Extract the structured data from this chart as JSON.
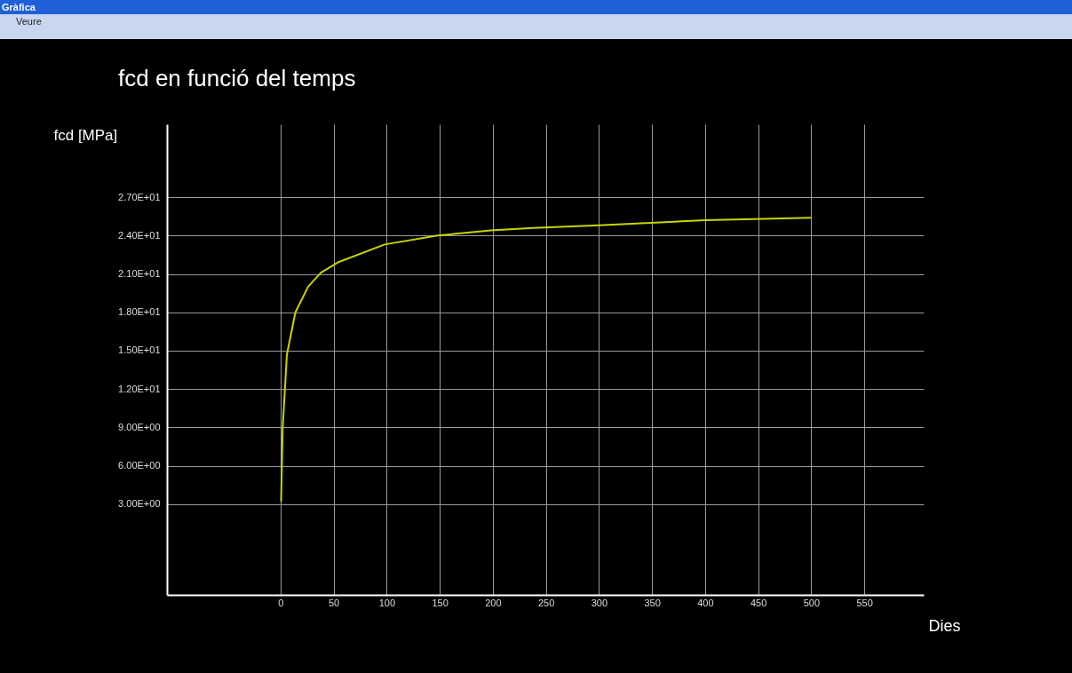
{
  "chart_data": {
    "type": "line",
    "title": "fcd en funció del temps",
    "xlabel": "Dies",
    "ylabel": "fcd [MPa]",
    "annotations": [
      "Gràfica",
      "Veure"
    ],
    "x": [
      0.5,
      2,
      6,
      14,
      26,
      38,
      54,
      98,
      148,
      198,
      238,
      300,
      400,
      500
    ],
    "series": [
      {
        "color": "#c8d400",
        "values": [
          3.2,
          8.9,
          14.7,
          18.0,
          20.0,
          21.1,
          21.9,
          23.3,
          24.0,
          24.4,
          24.6,
          24.8,
          25.2,
          25.4
        ]
      }
    ],
    "xlim": [
      -107,
      606
    ],
    "xticks": [
      0,
      50,
      100,
      150,
      200,
      250,
      300,
      350,
      400,
      450,
      500,
      550
    ],
    "ylim": [
      -4.1,
      32.7
    ],
    "yticks": [
      {
        "value": 3,
        "label": "3.00E+00"
      },
      {
        "value": 6,
        "label": "6.00E+00"
      },
      {
        "value": 9,
        "label": "9.00E+00"
      },
      {
        "value": 12,
        "label": "1.20E+01"
      },
      {
        "value": 15,
        "label": "1.50E+01"
      },
      {
        "value": 18,
        "label": "1.80E+01"
      },
      {
        "value": 21,
        "label": "2.10E+01"
      },
      {
        "value": 24,
        "label": "2.40E+01"
      },
      {
        "value": 27,
        "label": "2.70E+01"
      }
    ],
    "grid": true,
    "marker": "none",
    "line_style": "solid"
  }
}
